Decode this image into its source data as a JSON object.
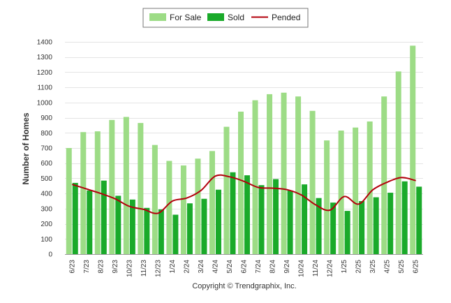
{
  "chart_data": {
    "type": "bar",
    "ylabel": "Number of Homes",
    "ylim": [
      0,
      1400
    ],
    "y_ticks": [
      0,
      100,
      200,
      300,
      400,
      500,
      600,
      700,
      800,
      900,
      1000,
      1100,
      1200,
      1300,
      1400
    ],
    "grid": true,
    "legend_position": "top-center",
    "categories": [
      "6/23",
      "7/23",
      "8/23",
      "9/23",
      "10/23",
      "11/23",
      "12/23",
      "1/24",
      "2/24",
      "3/24",
      "4/24",
      "5/24",
      "6/24",
      "7/24",
      "8/24",
      "9/24",
      "10/24",
      "11/24",
      "12/24",
      "1/25",
      "2/25",
      "3/25",
      "4/25",
      "5/25",
      "6/25"
    ],
    "series": [
      {
        "name": "For Sale",
        "kind": "bar",
        "color": "#9ddc86",
        "values": [
          700,
          805,
          810,
          885,
          905,
          865,
          720,
          615,
          585,
          630,
          680,
          840,
          940,
          1015,
          1055,
          1065,
          1040,
          945,
          750,
          815,
          835,
          875,
          1040,
          1205,
          1375
        ]
      },
      {
        "name": "Sold",
        "kind": "bar",
        "color": "#1aaa2a",
        "values": [
          470,
          420,
          485,
          385,
          360,
          305,
          295,
          260,
          335,
          365,
          425,
          540,
          520,
          455,
          495,
          420,
          460,
          370,
          340,
          285,
          350,
          375,
          405,
          480,
          445
        ]
      },
      {
        "name": "Pended",
        "kind": "line",
        "color": "#b3000c",
        "values": [
          460,
          430,
          400,
          365,
          315,
          295,
          270,
          350,
          370,
          420,
          515,
          510,
          480,
          440,
          435,
          425,
          390,
          325,
          290,
          380,
          330,
          425,
          475,
          505,
          485
        ]
      }
    ],
    "footer": "Copyright © Trendgraphix, Inc."
  }
}
